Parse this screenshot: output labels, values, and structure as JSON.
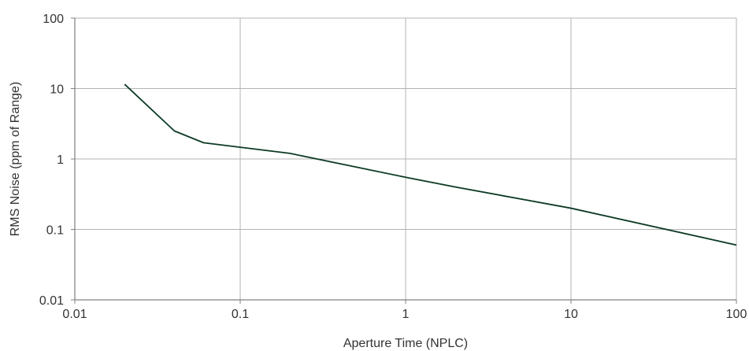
{
  "chart_data": {
    "type": "line",
    "title": "",
    "xlabel": "Aperture Time (NPLC)",
    "ylabel": "RMS Noise (ppm of Range)",
    "x_scale": "log",
    "y_scale": "log",
    "xlim": [
      0.01,
      100
    ],
    "ylim": [
      0.01,
      100
    ],
    "x_ticks": [
      0.01,
      0.1,
      1,
      10,
      100
    ],
    "x_tick_labels": [
      "0.01",
      "0.1",
      "1",
      "10",
      "100"
    ],
    "y_ticks": [
      0.01,
      0.1,
      1,
      10,
      100
    ],
    "y_tick_labels": [
      "0.01",
      "0.1",
      "1",
      "10",
      "100"
    ],
    "grid": true,
    "legend": "none",
    "series": [
      {
        "color": "#0b3a24",
        "points": [
          {
            "x": 0.02,
            "y": 11.5
          },
          {
            "x": 0.04,
            "y": 2.5
          },
          {
            "x": 0.06,
            "y": 1.7
          },
          {
            "x": 0.2,
            "y": 1.2
          },
          {
            "x": 1,
            "y": 0.55
          },
          {
            "x": 2,
            "y": 0.4
          },
          {
            "x": 10,
            "y": 0.2
          },
          {
            "x": 100,
            "y": 0.06
          }
        ]
      }
    ],
    "colors": {
      "grid": "#b3b3b3",
      "axis": "#808080",
      "text": "#333333"
    }
  }
}
